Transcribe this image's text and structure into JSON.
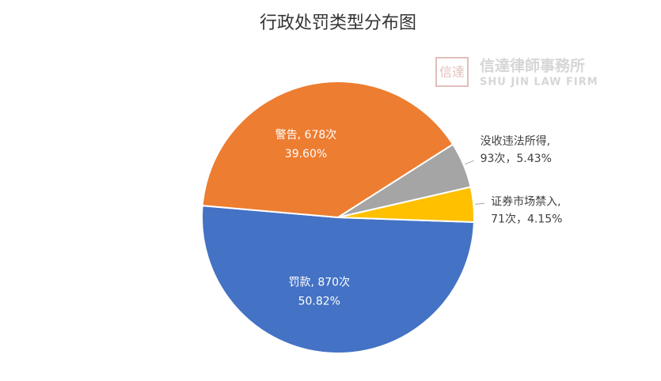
{
  "chart_data": {
    "type": "pie",
    "title": "行政处罚类型分布图",
    "watermark": {
      "seal": "信達",
      "name": "信達律師事務所",
      "name_en": "SHU JIN LAW FIRM"
    },
    "categories": [
      "罚款",
      "警告",
      "没收违法所得",
      "证券市场禁入"
    ],
    "values": [
      870,
      678,
      93,
      71
    ],
    "percents": [
      50.82,
      39.6,
      5.43,
      4.15
    ],
    "data_labels": [
      [
        "罚款, 870次",
        "50.82%"
      ],
      [
        "警告, 678次",
        "39.60%"
      ],
      [
        "没收违法所得,",
        "93次，5.43%"
      ],
      [
        "证券市场禁入,",
        "71次，4.15%"
      ]
    ],
    "colors": [
      "#4472c4",
      "#ed7d31",
      "#a5a5a5",
      "#ffc000"
    ]
  }
}
